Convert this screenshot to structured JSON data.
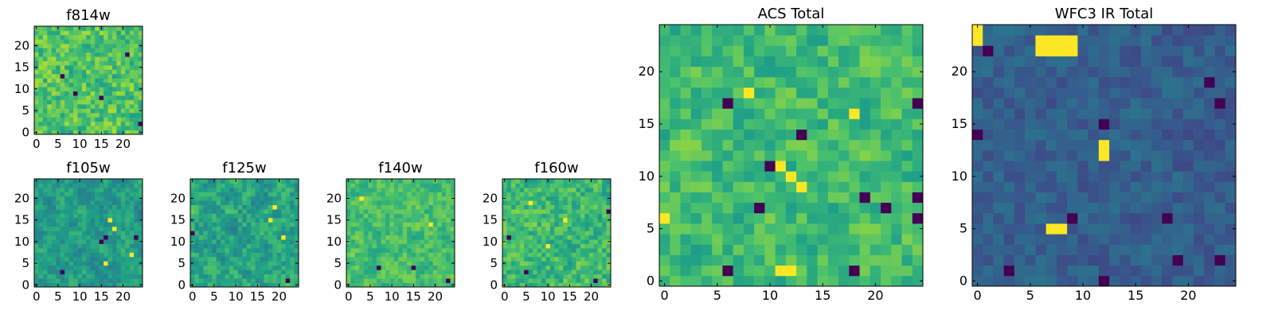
{
  "figure": {
    "description_free": true
  },
  "colormap": {
    "name": "viridis",
    "stops": [
      "#440154",
      "#46327e",
      "#365c8d",
      "#277f8e",
      "#1fa187",
      "#4ac16d",
      "#a0da39",
      "#fde725"
    ]
  },
  "chart_data": [
    {
      "type": "heatmap",
      "title": "f814w",
      "xlabel": "",
      "ylabel": "",
      "xlim": [
        -0.5,
        24.5
      ],
      "ylim": [
        -0.5,
        24.5
      ],
      "xticks": [
        "0",
        "5",
        "10",
        "15",
        "20"
      ],
      "yticks": [
        "0",
        "5",
        "10",
        "15",
        "20"
      ],
      "shape": [
        25,
        25
      ],
      "pattern": "mostly bright green-yellow noise with scattered dark pixels",
      "seed": 11,
      "level": 0.72,
      "spread": 0.18,
      "smooth": 0.2,
      "dark_pixels": [
        [
          9,
          9
        ],
        [
          15,
          8
        ],
        [
          24,
          2
        ],
        [
          6,
          13
        ],
        [
          21,
          18
        ]
      ],
      "bright_pixels": []
    },
    {
      "type": "heatmap",
      "title": "f105w",
      "xlabel": "",
      "ylabel": "",
      "xlim": [
        -0.5,
        24.5
      ],
      "ylim": [
        -0.5,
        24.5
      ],
      "xticks": [
        "0",
        "5",
        "10",
        "15",
        "20"
      ],
      "yticks": [
        "0",
        "5",
        "10",
        "15",
        "20"
      ],
      "shape": [
        25,
        25
      ],
      "seed": 23,
      "level": 0.55,
      "spread": 0.2,
      "smooth": 0.55,
      "dark_pixels": [
        [
          6,
          3
        ],
        [
          16,
          11
        ],
        [
          23,
          11
        ],
        [
          15,
          10
        ]
      ],
      "bright_pixels": [
        [
          17,
          15
        ],
        [
          18,
          13
        ],
        [
          16,
          5
        ],
        [
          22,
          7
        ]
      ]
    },
    {
      "type": "heatmap",
      "title": "f125w",
      "xlabel": "",
      "ylabel": "",
      "xlim": [
        -0.5,
        24.5
      ],
      "ylim": [
        -0.5,
        24.5
      ],
      "xticks": [
        "0",
        "5",
        "10",
        "15",
        "20"
      ],
      "yticks": [
        "0",
        "5",
        "10",
        "15",
        "20"
      ],
      "shape": [
        25,
        25
      ],
      "seed": 37,
      "level": 0.58,
      "spread": 0.22,
      "smooth": 0.5,
      "dark_pixels": [
        [
          0,
          12
        ],
        [
          22,
          1
        ]
      ],
      "bright_pixels": [
        [
          18,
          15
        ],
        [
          19,
          18
        ],
        [
          21,
          11
        ]
      ]
    },
    {
      "type": "heatmap",
      "title": "f140w",
      "xlabel": "",
      "ylabel": "",
      "xlim": [
        -0.5,
        24.5
      ],
      "ylim": [
        -0.5,
        24.5
      ],
      "xticks": [
        "0",
        "5",
        "10",
        "15",
        "20"
      ],
      "yticks": [
        "0",
        "5",
        "10",
        "15",
        "20"
      ],
      "shape": [
        25,
        25
      ],
      "seed": 41,
      "level": 0.7,
      "spread": 0.17,
      "smooth": 0.45,
      "dark_pixels": [
        [
          7,
          4
        ],
        [
          15,
          4
        ],
        [
          23,
          1
        ]
      ],
      "bright_pixels": [
        [
          3,
          20
        ],
        [
          19,
          14
        ]
      ]
    },
    {
      "type": "heatmap",
      "title": "f160w",
      "xlabel": "",
      "ylabel": "",
      "xlim": [
        -0.5,
        24.5
      ],
      "ylim": [
        -0.5,
        24.5
      ],
      "xticks": [
        "0",
        "5",
        "10",
        "15",
        "20"
      ],
      "yticks": [
        "0",
        "5",
        "10",
        "15",
        "20"
      ],
      "shape": [
        25,
        25
      ],
      "seed": 53,
      "level": 0.68,
      "spread": 0.2,
      "smooth": 0.4,
      "dark_pixels": [
        [
          21,
          1
        ],
        [
          24,
          17
        ],
        [
          5,
          3
        ],
        [
          1,
          11
        ]
      ],
      "bright_pixels": [
        [
          6,
          19
        ],
        [
          14,
          15
        ],
        [
          10,
          9
        ]
      ]
    },
    {
      "type": "heatmap",
      "title": "ACS Total",
      "xlabel": "",
      "ylabel": "",
      "xlim": [
        -0.5,
        24.5
      ],
      "ylim": [
        -0.5,
        24.5
      ],
      "xticks": [
        "0",
        "5",
        "10",
        "15",
        "20"
      ],
      "yticks": [
        "0",
        "5",
        "10",
        "15",
        "20"
      ],
      "shape": [
        25,
        25
      ],
      "seed": 67,
      "level": 0.68,
      "spread": 0.17,
      "smooth": 0.35,
      "dark_pixels": [
        [
          6,
          17
        ],
        [
          10,
          11
        ],
        [
          9,
          7
        ],
        [
          19,
          8
        ],
        [
          21,
          7
        ],
        [
          24,
          6
        ],
        [
          24,
          8
        ],
        [
          18,
          1
        ],
        [
          6,
          1
        ],
        [
          24,
          17
        ],
        [
          13,
          14
        ]
      ],
      "bright_pixels": [
        [
          11,
          1
        ],
        [
          12,
          1
        ],
        [
          11,
          11
        ],
        [
          12,
          10
        ],
        [
          13,
          9
        ],
        [
          0,
          6
        ],
        [
          8,
          18
        ],
        [
          18,
          16
        ]
      ]
    },
    {
      "type": "heatmap",
      "title": "WFC3 IR Total",
      "xlabel": "",
      "ylabel": "",
      "xlim": [
        -0.5,
        24.5
      ],
      "ylim": [
        -0.5,
        24.5
      ],
      "xticks": [
        "0",
        "5",
        "10",
        "15",
        "20"
      ],
      "yticks": [
        "0",
        "5",
        "10",
        "15",
        "20"
      ],
      "shape": [
        25,
        25
      ],
      "seed": 79,
      "level": 0.3,
      "spread": 0.1,
      "smooth": 0.3,
      "dark_pixels": [
        [
          1,
          22
        ],
        [
          12,
          15
        ],
        [
          9,
          6
        ],
        [
          18,
          6
        ],
        [
          23,
          17
        ],
        [
          22,
          19
        ],
        [
          23,
          2
        ],
        [
          19,
          2
        ],
        [
          12,
          0
        ],
        [
          0,
          14
        ],
        [
          3,
          1
        ]
      ],
      "bright_pixels": [
        [
          0,
          23
        ],
        [
          0,
          24
        ],
        [
          6,
          22
        ],
        [
          7,
          22
        ],
        [
          8,
          22
        ],
        [
          9,
          22
        ],
        [
          6,
          23
        ],
        [
          7,
          23
        ],
        [
          8,
          23
        ],
        [
          9,
          23
        ],
        [
          12,
          12
        ],
        [
          12,
          13
        ],
        [
          8,
          5
        ],
        [
          7,
          5
        ]
      ]
    }
  ]
}
